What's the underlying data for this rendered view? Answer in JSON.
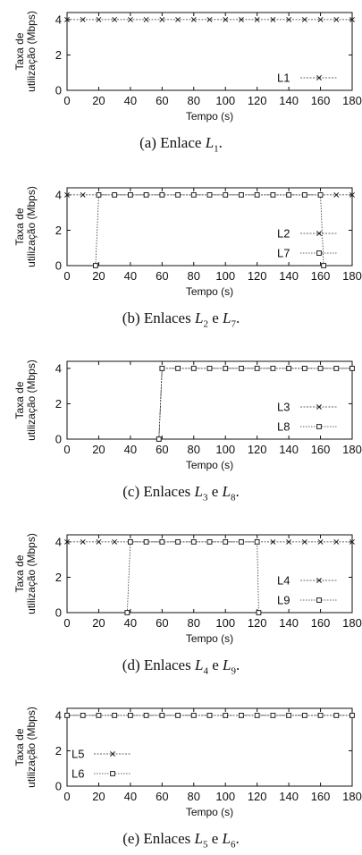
{
  "chart_data": [
    {
      "type": "line",
      "ylabel_lines": [
        "Taxa de",
        "utilização (Mbps)"
      ],
      "xlabel": "Tempo (s)",
      "xlim": [
        0,
        180
      ],
      "ylim": [
        0,
        4.4
      ],
      "xticks": [
        0,
        20,
        40,
        60,
        80,
        100,
        120,
        140,
        160,
        180
      ],
      "yticks": [
        0,
        2,
        4
      ],
      "legend_position": "lower-right",
      "series": [
        {
          "name": "L1",
          "marker": "x",
          "x": [
            0,
            10,
            20,
            30,
            40,
            50,
            60,
            70,
            80,
            90,
            100,
            110,
            120,
            130,
            140,
            150,
            160,
            170,
            180
          ],
          "y": [
            4,
            4,
            4,
            4,
            4,
            4,
            4,
            4,
            4,
            4,
            4,
            4,
            4,
            4,
            4,
            4,
            4,
            4,
            4
          ]
        }
      ],
      "caption": {
        "prefix": "(a) Enlace ",
        "parts": [
          {
            "sym": "L",
            "sub": "1"
          }
        ],
        "joiner": "",
        "suffix": "."
      }
    },
    {
      "type": "line",
      "ylabel_lines": [
        "Taxa de",
        "utilização (Mbps)"
      ],
      "xlabel": "Tempo (s)",
      "xlim": [
        0,
        180
      ],
      "ylim": [
        0,
        4.4
      ],
      "xticks": [
        0,
        20,
        40,
        60,
        80,
        100,
        120,
        140,
        160,
        180
      ],
      "yticks": [
        0,
        2,
        4
      ],
      "legend_position": "lower-right",
      "series": [
        {
          "name": "L2",
          "marker": "x",
          "x": [
            0,
            10,
            20,
            30,
            40,
            50,
            60,
            70,
            80,
            90,
            100,
            110,
            120,
            130,
            140,
            150,
            160,
            170,
            180
          ],
          "y": [
            4,
            4,
            4,
            4,
            4,
            4,
            4,
            4,
            4,
            4,
            4,
            4,
            4,
            4,
            4,
            4,
            4,
            4,
            4
          ]
        },
        {
          "name": "L7",
          "marker": "square",
          "x": [
            18,
            20,
            30,
            40,
            50,
            60,
            70,
            80,
            90,
            100,
            110,
            120,
            130,
            140,
            150,
            160,
            162
          ],
          "y": [
            0,
            4,
            4,
            4,
            4,
            4,
            4,
            4,
            4,
            4,
            4,
            4,
            4,
            4,
            4,
            4,
            0
          ]
        }
      ],
      "caption": {
        "prefix": "(b) Enlaces ",
        "parts": [
          {
            "sym": "L",
            "sub": "2"
          },
          {
            "sym": "L",
            "sub": "7"
          }
        ],
        "joiner": " e ",
        "suffix": "."
      }
    },
    {
      "type": "line",
      "ylabel_lines": [
        "Taxa de",
        "utilização (Mbps)"
      ],
      "xlabel": "Tempo (s)",
      "xlim": [
        0,
        180
      ],
      "ylim": [
        0,
        4.4
      ],
      "xticks": [
        0,
        20,
        40,
        60,
        80,
        100,
        120,
        140,
        160,
        180
      ],
      "yticks": [
        0,
        2,
        4
      ],
      "legend_position": "lower-right",
      "series": [
        {
          "name": "L3",
          "marker": "x",
          "x": [
            58,
            60,
            70,
            80,
            90,
            100,
            110,
            120,
            130,
            140,
            150,
            160,
            170,
            180
          ],
          "y": [
            0,
            4,
            4,
            4,
            4,
            4,
            4,
            4,
            4,
            4,
            4,
            4,
            4,
            4
          ]
        },
        {
          "name": "L8",
          "marker": "square",
          "x": [
            58,
            60,
            70,
            80,
            90,
            100,
            110,
            120,
            130,
            140,
            150,
            160,
            170,
            180
          ],
          "y": [
            0,
            4,
            4,
            4,
            4,
            4,
            4,
            4,
            4,
            4,
            4,
            4,
            4,
            4
          ]
        }
      ],
      "caption": {
        "prefix": "(c) Enlaces ",
        "parts": [
          {
            "sym": "L",
            "sub": "3"
          },
          {
            "sym": "L",
            "sub": "8"
          }
        ],
        "joiner": " e ",
        "suffix": "."
      }
    },
    {
      "type": "line",
      "ylabel_lines": [
        "Taxa de",
        "utilização (Mbps)"
      ],
      "xlabel": "Tempo (s)",
      "xlim": [
        0,
        180
      ],
      "ylim": [
        0,
        4.4
      ],
      "xticks": [
        0,
        20,
        40,
        60,
        80,
        100,
        120,
        140,
        160,
        180
      ],
      "yticks": [
        0,
        2,
        4
      ],
      "legend_position": "lower-right",
      "series": [
        {
          "name": "L4",
          "marker": "x",
          "x": [
            0,
            10,
            20,
            30,
            40,
            50,
            60,
            70,
            80,
            90,
            100,
            110,
            120,
            130,
            140,
            150,
            160,
            170,
            180
          ],
          "y": [
            4,
            4,
            4,
            4,
            4,
            4,
            4,
            4,
            4,
            4,
            4,
            4,
            4,
            4,
            4,
            4,
            4,
            4,
            4
          ]
        },
        {
          "name": "L9",
          "marker": "square",
          "x": [
            38,
            40,
            50,
            60,
            70,
            80,
            90,
            100,
            110,
            120,
            121
          ],
          "y": [
            0,
            4,
            4,
            4,
            4,
            4,
            4,
            4,
            4,
            4,
            0
          ]
        }
      ],
      "caption": {
        "prefix": "(d) Enlaces ",
        "parts": [
          {
            "sym": "L",
            "sub": "4"
          },
          {
            "sym": "L",
            "sub": "9"
          }
        ],
        "joiner": " e ",
        "suffix": "."
      }
    },
    {
      "type": "line",
      "ylabel_lines": [
        "Taxa de",
        "utilização (Mbps)"
      ],
      "xlabel": "Tempo (s)",
      "xlim": [
        0,
        180
      ],
      "ylim": [
        0,
        4.4
      ],
      "xticks": [
        0,
        20,
        40,
        60,
        80,
        100,
        120,
        140,
        160,
        180
      ],
      "yticks": [
        0,
        2,
        4
      ],
      "legend_position": "lower-left",
      "series": [
        {
          "name": "L5",
          "marker": "x",
          "x": [
            0,
            10,
            20,
            30,
            40,
            50,
            60,
            70,
            80,
            90,
            100,
            110,
            120,
            130,
            140,
            150,
            160,
            170,
            180
          ],
          "y": [
            4,
            4,
            4,
            4,
            4,
            4,
            4,
            4,
            4,
            4,
            4,
            4,
            4,
            4,
            4,
            4,
            4,
            4,
            4
          ]
        },
        {
          "name": "L6",
          "marker": "square",
          "x": [
            0,
            10,
            20,
            30,
            40,
            50,
            60,
            70,
            80,
            90,
            100,
            110,
            120,
            130,
            140,
            150,
            160,
            170,
            180
          ],
          "y": [
            4,
            4,
            4,
            4,
            4,
            4,
            4,
            4,
            4,
            4,
            4,
            4,
            4,
            4,
            4,
            4,
            4,
            4,
            4
          ]
        }
      ],
      "caption": {
        "prefix": "(e) Enlaces ",
        "parts": [
          {
            "sym": "L",
            "sub": "5"
          },
          {
            "sym": "L",
            "sub": "6"
          }
        ],
        "joiner": " e ",
        "suffix": "."
      }
    }
  ]
}
